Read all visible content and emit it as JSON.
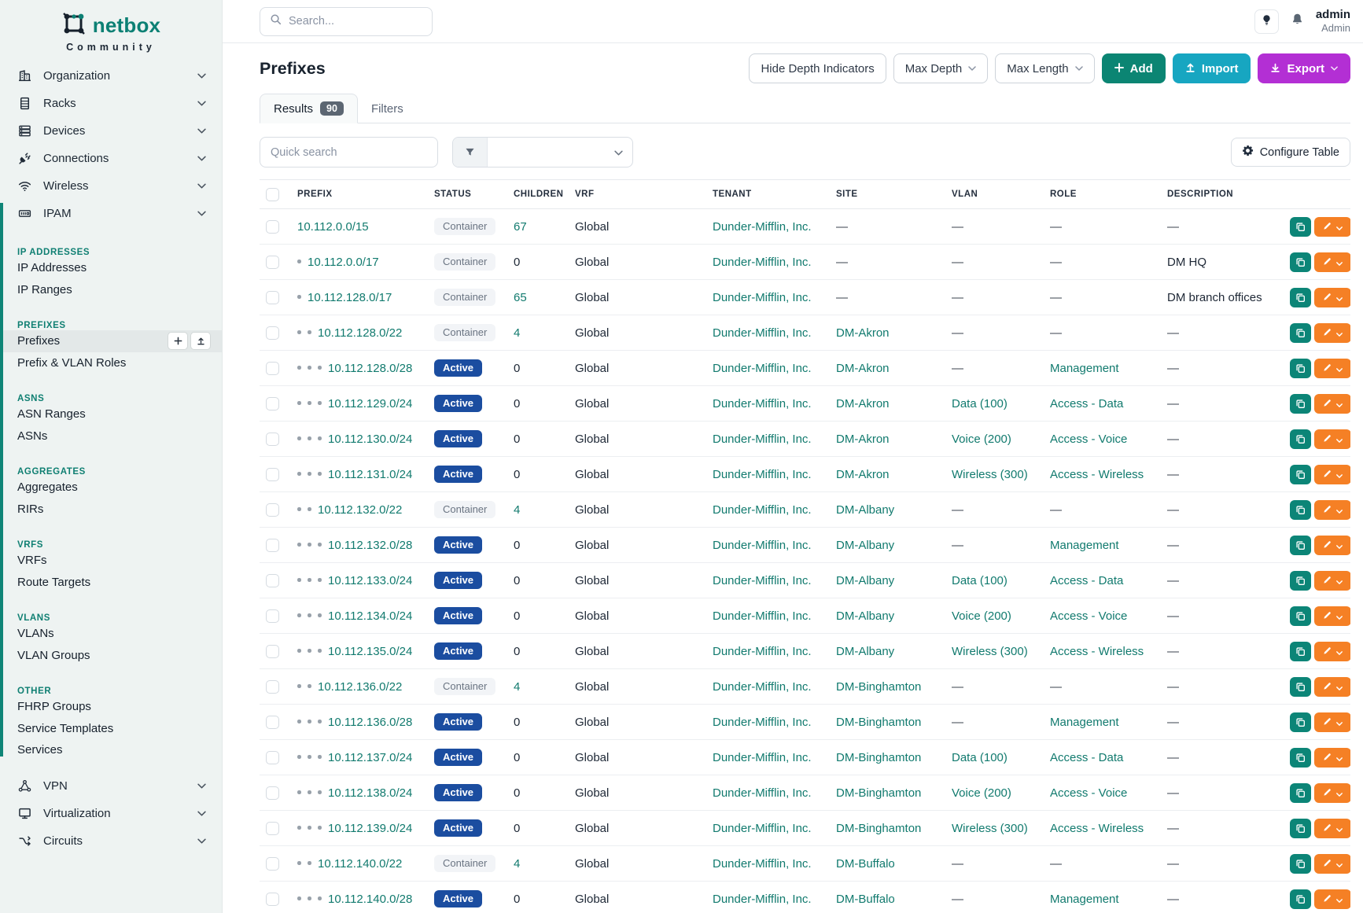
{
  "brand": {
    "name": "netbox",
    "subtitle": "Community"
  },
  "topbar": {
    "search_placeholder": "Search...",
    "user": {
      "name": "admin",
      "role": "Admin"
    }
  },
  "sidebar": {
    "items_top": [
      {
        "label": "Organization",
        "icon": "building-icon"
      },
      {
        "label": "Racks",
        "icon": "rack-icon"
      },
      {
        "label": "Devices",
        "icon": "server-icon"
      },
      {
        "label": "Connections",
        "icon": "plug-icon"
      },
      {
        "label": "Wireless",
        "icon": "wifi-icon"
      }
    ],
    "ipam": {
      "label": "IPAM",
      "icon": "ipam-icon",
      "groups": [
        {
          "header": "IP ADDRESSES",
          "links": [
            "IP Addresses",
            "IP Ranges"
          ]
        },
        {
          "header": "PREFIXES",
          "links": [
            "Prefixes",
            "Prefix & VLAN Roles"
          ],
          "active": "Prefixes"
        },
        {
          "header": "ASNS",
          "links": [
            "ASN Ranges",
            "ASNs"
          ]
        },
        {
          "header": "AGGREGATES",
          "links": [
            "Aggregates",
            "RIRs"
          ]
        },
        {
          "header": "VRFS",
          "links": [
            "VRFs",
            "Route Targets"
          ]
        },
        {
          "header": "VLANS",
          "links": [
            "VLANs",
            "VLAN Groups"
          ]
        },
        {
          "header": "OTHER",
          "links": [
            "FHRP Groups",
            "Service Templates",
            "Services"
          ]
        }
      ]
    },
    "items_bottom": [
      {
        "label": "VPN",
        "icon": "vpn-icon"
      },
      {
        "label": "Virtualization",
        "icon": "monitor-icon"
      },
      {
        "label": "Circuits",
        "icon": "circuit-icon"
      }
    ]
  },
  "page": {
    "title": "Prefixes",
    "toolbar": {
      "hide_depth": "Hide Depth Indicators",
      "max_depth": "Max Depth",
      "max_length": "Max Length",
      "add": "Add",
      "import": "Import",
      "export": "Export"
    },
    "tabs": [
      {
        "label": "Results",
        "count": "90"
      },
      {
        "label": "Filters"
      }
    ],
    "quick_search_placeholder": "Quick search",
    "configure_table": "Configure Table"
  },
  "table": {
    "columns": [
      "PREFIX",
      "STATUS",
      "CHILDREN",
      "VRF",
      "TENANT",
      "SITE",
      "VLAN",
      "ROLE",
      "DESCRIPTION"
    ],
    "empty_placeholder": "—",
    "rows": [
      {
        "prefix": "10.112.0.0/15",
        "depth": 0,
        "status": "Container",
        "children": "67",
        "vrf": "Global",
        "tenant": "Dunder-Mifflin, Inc.",
        "site": "",
        "vlan": "",
        "role": "",
        "description": ""
      },
      {
        "prefix": "10.112.0.0/17",
        "depth": 1,
        "status": "Container",
        "children": "0",
        "vrf": "Global",
        "tenant": "Dunder-Mifflin, Inc.",
        "site": "",
        "vlan": "",
        "role": "",
        "description": "DM HQ"
      },
      {
        "prefix": "10.112.128.0/17",
        "depth": 1,
        "status": "Container",
        "children": "65",
        "vrf": "Global",
        "tenant": "Dunder-Mifflin, Inc.",
        "site": "",
        "vlan": "",
        "role": "",
        "description": "DM branch offices"
      },
      {
        "prefix": "10.112.128.0/22",
        "depth": 2,
        "status": "Container",
        "children": "4",
        "vrf": "Global",
        "tenant": "Dunder-Mifflin, Inc.",
        "site": "DM-Akron",
        "vlan": "",
        "role": "",
        "description": ""
      },
      {
        "prefix": "10.112.128.0/28",
        "depth": 3,
        "status": "Active",
        "children": "0",
        "vrf": "Global",
        "tenant": "Dunder-Mifflin, Inc.",
        "site": "DM-Akron",
        "vlan": "",
        "role": "Management",
        "description": ""
      },
      {
        "prefix": "10.112.129.0/24",
        "depth": 3,
        "status": "Active",
        "children": "0",
        "vrf": "Global",
        "tenant": "Dunder-Mifflin, Inc.",
        "site": "DM-Akron",
        "vlan": "Data (100)",
        "role": "Access - Data",
        "description": ""
      },
      {
        "prefix": "10.112.130.0/24",
        "depth": 3,
        "status": "Active",
        "children": "0",
        "vrf": "Global",
        "tenant": "Dunder-Mifflin, Inc.",
        "site": "DM-Akron",
        "vlan": "Voice (200)",
        "role": "Access - Voice",
        "description": ""
      },
      {
        "prefix": "10.112.131.0/24",
        "depth": 3,
        "status": "Active",
        "children": "0",
        "vrf": "Global",
        "tenant": "Dunder-Mifflin, Inc.",
        "site": "DM-Akron",
        "vlan": "Wireless (300)",
        "role": "Access - Wireless",
        "description": ""
      },
      {
        "prefix": "10.112.132.0/22",
        "depth": 2,
        "status": "Container",
        "children": "4",
        "vrf": "Global",
        "tenant": "Dunder-Mifflin, Inc.",
        "site": "DM-Albany",
        "vlan": "",
        "role": "",
        "description": ""
      },
      {
        "prefix": "10.112.132.0/28",
        "depth": 3,
        "status": "Active",
        "children": "0",
        "vrf": "Global",
        "tenant": "Dunder-Mifflin, Inc.",
        "site": "DM-Albany",
        "vlan": "",
        "role": "Management",
        "description": ""
      },
      {
        "prefix": "10.112.133.0/24",
        "depth": 3,
        "status": "Active",
        "children": "0",
        "vrf": "Global",
        "tenant": "Dunder-Mifflin, Inc.",
        "site": "DM-Albany",
        "vlan": "Data (100)",
        "role": "Access - Data",
        "description": ""
      },
      {
        "prefix": "10.112.134.0/24",
        "depth": 3,
        "status": "Active",
        "children": "0",
        "vrf": "Global",
        "tenant": "Dunder-Mifflin, Inc.",
        "site": "DM-Albany",
        "vlan": "Voice (200)",
        "role": "Access - Voice",
        "description": ""
      },
      {
        "prefix": "10.112.135.0/24",
        "depth": 3,
        "status": "Active",
        "children": "0",
        "vrf": "Global",
        "tenant": "Dunder-Mifflin, Inc.",
        "site": "DM-Albany",
        "vlan": "Wireless (300)",
        "role": "Access - Wireless",
        "description": ""
      },
      {
        "prefix": "10.112.136.0/22",
        "depth": 2,
        "status": "Container",
        "children": "4",
        "vrf": "Global",
        "tenant": "Dunder-Mifflin, Inc.",
        "site": "DM-Binghamton",
        "vlan": "",
        "role": "",
        "description": ""
      },
      {
        "prefix": "10.112.136.0/28",
        "depth": 3,
        "status": "Active",
        "children": "0",
        "vrf": "Global",
        "tenant": "Dunder-Mifflin, Inc.",
        "site": "DM-Binghamton",
        "vlan": "",
        "role": "Management",
        "description": ""
      },
      {
        "prefix": "10.112.137.0/24",
        "depth": 3,
        "status": "Active",
        "children": "0",
        "vrf": "Global",
        "tenant": "Dunder-Mifflin, Inc.",
        "site": "DM-Binghamton",
        "vlan": "Data (100)",
        "role": "Access - Data",
        "description": ""
      },
      {
        "prefix": "10.112.138.0/24",
        "depth": 3,
        "status": "Active",
        "children": "0",
        "vrf": "Global",
        "tenant": "Dunder-Mifflin, Inc.",
        "site": "DM-Binghamton",
        "vlan": "Voice (200)",
        "role": "Access - Voice",
        "description": ""
      },
      {
        "prefix": "10.112.139.0/24",
        "depth": 3,
        "status": "Active",
        "children": "0",
        "vrf": "Global",
        "tenant": "Dunder-Mifflin, Inc.",
        "site": "DM-Binghamton",
        "vlan": "Wireless (300)",
        "role": "Access - Wireless",
        "description": ""
      },
      {
        "prefix": "10.112.140.0/22",
        "depth": 2,
        "status": "Container",
        "children": "4",
        "vrf": "Global",
        "tenant": "Dunder-Mifflin, Inc.",
        "site": "DM-Buffalo",
        "vlan": "",
        "role": "",
        "description": ""
      },
      {
        "prefix": "10.112.140.0/28",
        "depth": 3,
        "status": "Active",
        "children": "0",
        "vrf": "Global",
        "tenant": "Dunder-Mifflin, Inc.",
        "site": "DM-Buffalo",
        "vlan": "",
        "role": "Management",
        "description": ""
      }
    ]
  },
  "colors": {
    "accent_teal": "#0E8577",
    "link_teal": "#117A6E",
    "active_badge": "#1B4DA0",
    "container_badge_bg": "#F2F4F7",
    "container_badge_text": "#6A7482",
    "add_button": "#0B8573",
    "import_button": "#17A6C1",
    "export_button": "#B32FD4",
    "edit_button": "#F58025",
    "copy_button": "#0C8577"
  }
}
